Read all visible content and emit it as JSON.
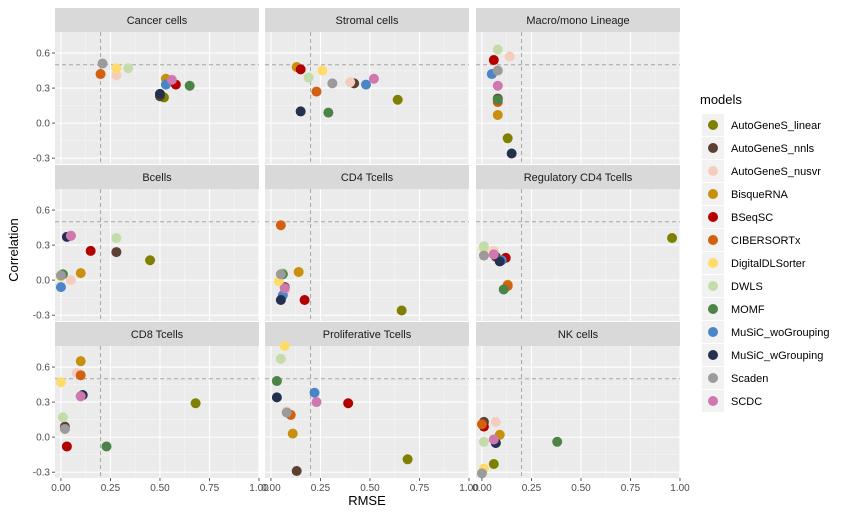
{
  "chart_data": {
    "type": "scatter",
    "xlabel": "RMSE",
    "ylabel": "Correlation",
    "xlim": [
      -0.03,
      1.0
    ],
    "ylim": [
      -0.35,
      0.78
    ],
    "x_ticks": [
      0.0,
      0.25,
      0.5,
      0.75,
      1.0
    ],
    "x_tick_labels": [
      "0.00",
      "0.25",
      "0.50",
      "0.75",
      "1.00"
    ],
    "y_ticks": [
      -0.3,
      0.0,
      0.3,
      0.6
    ],
    "y_tick_labels": [
      "-0.3",
      "0.0",
      "0.3",
      "0.6"
    ],
    "reference_lines": {
      "x": 0.2,
      "y": 0.5
    },
    "grid": true,
    "legend": {
      "title": "models",
      "position": "right",
      "entries": [
        {
          "name": "AutoGeneS_linear",
          "color": "#808000"
        },
        {
          "name": "AutoGeneS_nnls",
          "color": "#5C4033"
        },
        {
          "name": "AutoGeneS_nusvr",
          "color": "#F4CDBE"
        },
        {
          "name": "BisqueRNA",
          "color": "#C8900C"
        },
        {
          "name": "BSeqSC",
          "color": "#B30000"
        },
        {
          "name": "CIBERSORTx",
          "color": "#D2600F"
        },
        {
          "name": "DigitalDLSorter",
          "color": "#FDDC6A"
        },
        {
          "name": "DWLS",
          "color": "#C3DCAA"
        },
        {
          "name": "MOMF",
          "color": "#4C8447"
        },
        {
          "name": "MuSiC_woGrouping",
          "color": "#4A85C8"
        },
        {
          "name": "MuSiC_wGrouping",
          "color": "#23304F"
        },
        {
          "name": "Scaden",
          "color": "#9B9B9B"
        },
        {
          "name": "SCDC",
          "color": "#CF78B0"
        }
      ]
    },
    "panels": [
      {
        "title": "Cancer cells",
        "points": [
          {
            "model": "AutoGeneS_linear",
            "x": 0.52,
            "y": 0.22
          },
          {
            "model": "AutoGeneS_nnls",
            "x": 0.5,
            "y": 0.23
          },
          {
            "model": "AutoGeneS_nusvr",
            "x": 0.28,
            "y": 0.41
          },
          {
            "model": "BisqueRNA",
            "x": 0.53,
            "y": 0.38
          },
          {
            "model": "BSeqSC",
            "x": 0.58,
            "y": 0.33
          },
          {
            "model": "CIBERSORTx",
            "x": 0.2,
            "y": 0.42
          },
          {
            "model": "DigitalDLSorter",
            "x": 0.28,
            "y": 0.47
          },
          {
            "model": "DWLS",
            "x": 0.34,
            "y": 0.47
          },
          {
            "model": "MOMF",
            "x": 0.65,
            "y": 0.32
          },
          {
            "model": "MuSiC_woGrouping",
            "x": 0.53,
            "y": 0.33
          },
          {
            "model": "MuSiC_wGrouping",
            "x": 0.5,
            "y": 0.25
          },
          {
            "model": "Scaden",
            "x": 0.21,
            "y": 0.51
          },
          {
            "model": "SCDC",
            "x": 0.56,
            "y": 0.37
          }
        ]
      },
      {
        "title": "Stromal cells",
        "points": [
          {
            "model": "AutoGeneS_linear",
            "x": 0.64,
            "y": 0.2
          },
          {
            "model": "AutoGeneS_nnls",
            "x": 0.42,
            "y": 0.34
          },
          {
            "model": "AutoGeneS_nusvr",
            "x": 0.4,
            "y": 0.35
          },
          {
            "model": "BisqueRNA",
            "x": 0.13,
            "y": 0.48
          },
          {
            "model": "BSeqSC",
            "x": 0.15,
            "y": 0.46
          },
          {
            "model": "CIBERSORTx",
            "x": 0.23,
            "y": 0.27
          },
          {
            "model": "DigitalDLSorter",
            "x": 0.26,
            "y": 0.45
          },
          {
            "model": "DWLS",
            "x": 0.19,
            "y": 0.39
          },
          {
            "model": "MOMF",
            "x": 0.29,
            "y": 0.09
          },
          {
            "model": "MuSiC_woGrouping",
            "x": 0.48,
            "y": 0.33
          },
          {
            "model": "MuSiC_wGrouping",
            "x": 0.15,
            "y": 0.1
          },
          {
            "model": "Scaden",
            "x": 0.31,
            "y": 0.34
          },
          {
            "model": "SCDC",
            "x": 0.52,
            "y": 0.38
          }
        ]
      },
      {
        "title": "Macro/mono Lineage",
        "points": [
          {
            "model": "AutoGeneS_linear",
            "x": 0.13,
            "y": -0.13
          },
          {
            "model": "AutoGeneS_nnls",
            "x": 0.08,
            "y": 0.21
          },
          {
            "model": "AutoGeneS_nusvr",
            "x": 0.14,
            "y": 0.57
          },
          {
            "model": "BisqueRNA",
            "x": 0.08,
            "y": 0.07
          },
          {
            "model": "BSeqSC",
            "x": 0.06,
            "y": 0.54
          },
          {
            "model": "CIBERSORTx",
            "x": 0.08,
            "y": 0.18
          },
          {
            "model": "DigitalDLSorter",
            "x": 0.08,
            "y": 0.32
          },
          {
            "model": "DWLS",
            "x": 0.08,
            "y": 0.63
          },
          {
            "model": "MOMF",
            "x": 0.08,
            "y": 0.2
          },
          {
            "model": "MuSiC_woGrouping",
            "x": 0.05,
            "y": 0.42
          },
          {
            "model": "MuSiC_wGrouping",
            "x": 0.15,
            "y": -0.26
          },
          {
            "model": "Scaden",
            "x": 0.08,
            "y": 0.45
          },
          {
            "model": "SCDC",
            "x": 0.08,
            "y": 0.32
          }
        ]
      },
      {
        "title": "Bcells",
        "points": [
          {
            "model": "AutoGeneS_linear",
            "x": 0.45,
            "y": 0.17
          },
          {
            "model": "AutoGeneS_nnls",
            "x": 0.28,
            "y": 0.24
          },
          {
            "model": "AutoGeneS_nusvr",
            "x": 0.05,
            "y": 0.0
          },
          {
            "model": "BisqueRNA",
            "x": 0.1,
            "y": 0.06
          },
          {
            "model": "BSeqSC",
            "x": 0.15,
            "y": 0.25
          },
          {
            "model": "CIBERSORTx",
            "x": 0.05,
            "y": 0.38
          },
          {
            "model": "DigitalDLSorter",
            "x": 0.0,
            "y": 0.03
          },
          {
            "model": "DWLS",
            "x": 0.28,
            "y": 0.36
          },
          {
            "model": "MOMF",
            "x": 0.01,
            "y": 0.05
          },
          {
            "model": "MuSiC_woGrouping",
            "x": 0.0,
            "y": -0.06
          },
          {
            "model": "MuSiC_wGrouping",
            "x": 0.03,
            "y": 0.37
          },
          {
            "model": "Scaden",
            "x": 0.0,
            "y": 0.04
          },
          {
            "model": "SCDC",
            "x": 0.05,
            "y": 0.38
          }
        ]
      },
      {
        "title": "CD4 Tcells",
        "points": [
          {
            "model": "AutoGeneS_linear",
            "x": 0.66,
            "y": -0.26
          },
          {
            "model": "AutoGeneS_nnls",
            "x": 0.07,
            "y": -0.06
          },
          {
            "model": "AutoGeneS_nusvr",
            "x": 0.07,
            "y": -0.09
          },
          {
            "model": "BisqueRNA",
            "x": 0.14,
            "y": 0.07
          },
          {
            "model": "BSeqSC",
            "x": 0.17,
            "y": -0.17
          },
          {
            "model": "CIBERSORTx",
            "x": 0.05,
            "y": 0.47
          },
          {
            "model": "DigitalDLSorter",
            "x": 0.04,
            "y": -0.01
          },
          {
            "model": "DWLS",
            "x": 0.06,
            "y": 0.06
          },
          {
            "model": "MOMF",
            "x": 0.06,
            "y": 0.05
          },
          {
            "model": "MuSiC_woGrouping",
            "x": 0.06,
            "y": -0.13
          },
          {
            "model": "MuSiC_wGrouping",
            "x": 0.05,
            "y": -0.17
          },
          {
            "model": "Scaden",
            "x": 0.05,
            "y": 0.05
          },
          {
            "model": "SCDC",
            "x": 0.07,
            "y": -0.07
          }
        ]
      },
      {
        "title": "Regulatory CD4 Tcells",
        "points": [
          {
            "model": "AutoGeneS_linear",
            "x": 0.96,
            "y": 0.36
          },
          {
            "model": "AutoGeneS_nnls",
            "x": 0.07,
            "y": 0.2
          },
          {
            "model": "AutoGeneS_nusvr",
            "x": 0.06,
            "y": 0.25
          },
          {
            "model": "BisqueRNA",
            "x": 0.13,
            "y": -0.04
          },
          {
            "model": "BSeqSC",
            "x": 0.12,
            "y": 0.19
          },
          {
            "model": "CIBERSORTx",
            "x": 0.13,
            "y": -0.05
          },
          {
            "model": "DigitalDLSorter",
            "x": 0.01,
            "y": 0.27
          },
          {
            "model": "DWLS",
            "x": 0.01,
            "y": 0.29
          },
          {
            "model": "MOMF",
            "x": 0.11,
            "y": -0.08
          },
          {
            "model": "MuSiC_woGrouping",
            "x": 0.1,
            "y": 0.17
          },
          {
            "model": "MuSiC_wGrouping",
            "x": 0.09,
            "y": 0.16
          },
          {
            "model": "Scaden",
            "x": 0.01,
            "y": 0.21
          },
          {
            "model": "SCDC",
            "x": 0.06,
            "y": 0.22
          }
        ]
      },
      {
        "title": "CD8 Tcells",
        "points": [
          {
            "model": "AutoGeneS_linear",
            "x": 0.68,
            "y": 0.29
          },
          {
            "model": "AutoGeneS_nnls",
            "x": 0.02,
            "y": 0.09
          },
          {
            "model": "AutoGeneS_nusvr",
            "x": 0.08,
            "y": 0.55
          },
          {
            "model": "BisqueRNA",
            "x": 0.1,
            "y": 0.65
          },
          {
            "model": "BSeqSC",
            "x": 0.03,
            "y": -0.08
          },
          {
            "model": "CIBERSORTx",
            "x": 0.1,
            "y": 0.53
          },
          {
            "model": "DigitalDLSorter",
            "x": 0.0,
            "y": 0.47
          },
          {
            "model": "DWLS",
            "x": 0.01,
            "y": 0.17
          },
          {
            "model": "MOMF",
            "x": 0.23,
            "y": -0.08
          },
          {
            "model": "MuSiC_woGrouping",
            "x": 0.1,
            "y": 0.35
          },
          {
            "model": "MuSiC_wGrouping",
            "x": 0.11,
            "y": 0.36
          },
          {
            "model": "Scaden",
            "x": 0.02,
            "y": 0.07
          },
          {
            "model": "SCDC",
            "x": 0.1,
            "y": 0.35
          }
        ]
      },
      {
        "title": "Proliferative Tcells",
        "points": [
          {
            "model": "AutoGeneS_linear",
            "x": 0.69,
            "y": -0.19
          },
          {
            "model": "AutoGeneS_nnls",
            "x": 0.13,
            "y": -0.29
          },
          {
            "model": "AutoGeneS_nusvr",
            "x": 0.08,
            "y": 0.22
          },
          {
            "model": "BisqueRNA",
            "x": 0.11,
            "y": 0.03
          },
          {
            "model": "BSeqSC",
            "x": 0.39,
            "y": 0.29
          },
          {
            "model": "CIBERSORTx",
            "x": 0.1,
            "y": 0.19
          },
          {
            "model": "DigitalDLSorter",
            "x": 0.07,
            "y": 0.78
          },
          {
            "model": "DWLS",
            "x": 0.05,
            "y": 0.67
          },
          {
            "model": "MOMF",
            "x": 0.03,
            "y": 0.48
          },
          {
            "model": "MuSiC_woGrouping",
            "x": 0.22,
            "y": 0.38
          },
          {
            "model": "MuSiC_wGrouping",
            "x": 0.03,
            "y": 0.34
          },
          {
            "model": "Scaden",
            "x": 0.08,
            "y": 0.21
          },
          {
            "model": "SCDC",
            "x": 0.23,
            "y": 0.3
          }
        ]
      },
      {
        "title": "NK cells",
        "points": [
          {
            "model": "AutoGeneS_linear",
            "x": 0.06,
            "y": -0.23
          },
          {
            "model": "AutoGeneS_nnls",
            "x": 0.01,
            "y": 0.13
          },
          {
            "model": "AutoGeneS_nusvr",
            "x": 0.07,
            "y": 0.13
          },
          {
            "model": "BisqueRNA",
            "x": 0.09,
            "y": 0.02
          },
          {
            "model": "BSeqSC",
            "x": 0.01,
            "y": 0.09
          },
          {
            "model": "CIBERSORTx",
            "x": 0.0,
            "y": 0.11
          },
          {
            "model": "DigitalDLSorter",
            "x": 0.01,
            "y": -0.27
          },
          {
            "model": "DWLS",
            "x": 0.01,
            "y": -0.04
          },
          {
            "model": "MOMF",
            "x": 0.38,
            "y": -0.04
          },
          {
            "model": "MuSiC_woGrouping",
            "x": 0.07,
            "y": -0.05
          },
          {
            "model": "MuSiC_wGrouping",
            "x": 0.07,
            "y": -0.05
          },
          {
            "model": "Scaden",
            "x": 0.0,
            "y": -0.31
          },
          {
            "model": "SCDC",
            "x": 0.06,
            "y": -0.02
          }
        ]
      }
    ]
  }
}
